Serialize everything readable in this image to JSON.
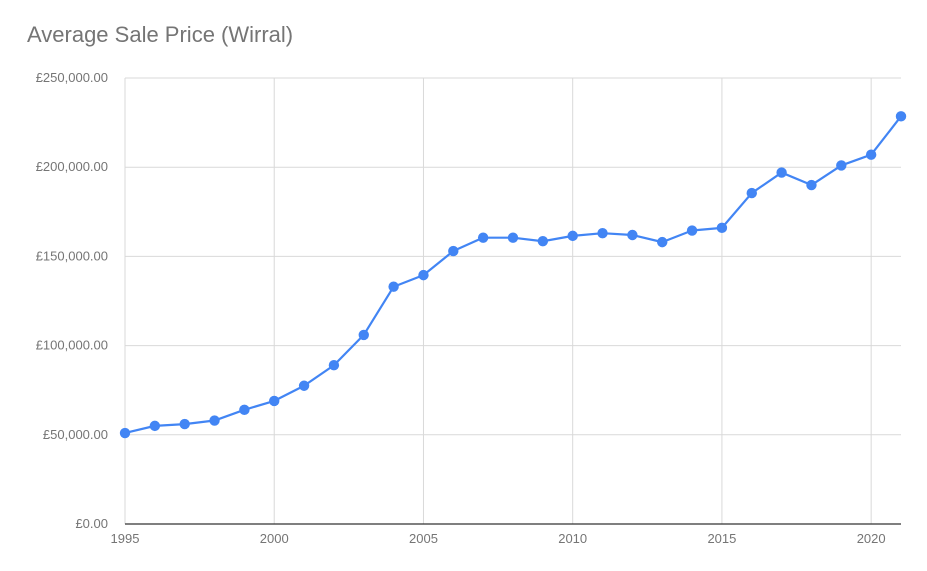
{
  "chart_data": {
    "type": "line",
    "title": "Average Sale Price (Wirral)",
    "xlabel": "",
    "ylabel": "",
    "xlim": [
      1995,
      2021
    ],
    "ylim": [
      0,
      250000
    ],
    "x_ticks": [
      1995,
      2000,
      2005,
      2010,
      2015,
      2020
    ],
    "y_ticks": [
      0,
      50000,
      100000,
      150000,
      200000,
      250000
    ],
    "y_tick_labels": [
      "£0.00",
      "£50,000.00",
      "£100,000.00",
      "£150,000.00",
      "£200,000.00",
      "£250,000.00"
    ],
    "grid": true,
    "legend": "none",
    "series_color": "#4285f4",
    "x": [
      1995,
      1996,
      1997,
      1998,
      1999,
      2000,
      2001,
      2002,
      2003,
      2004,
      2005,
      2006,
      2007,
      2008,
      2009,
      2010,
      2011,
      2012,
      2013,
      2014,
      2015,
      2016,
      2017,
      2018,
      2019,
      2020,
      2021
    ],
    "series": [
      {
        "values": [
          51000,
          55000,
          56000,
          58000,
          64000,
          69000,
          77500,
          89000,
          106000,
          133000,
          139500,
          153000,
          160500,
          160500,
          158500,
          161500,
          163000,
          162000,
          158000,
          164500,
          166000,
          185500,
          197000,
          190000,
          201000,
          207000,
          228500
        ]
      }
    ]
  }
}
